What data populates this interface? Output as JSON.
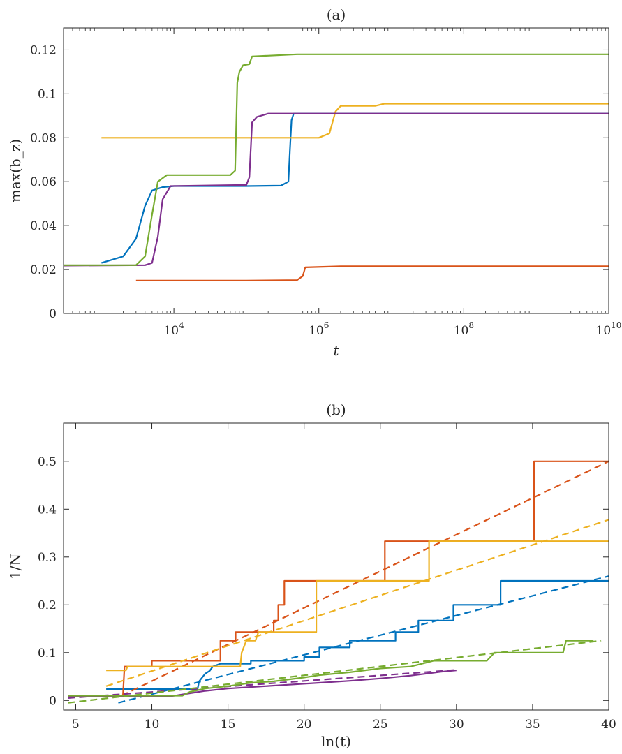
{
  "chart_data": [
    {
      "type": "line",
      "title": "(a)",
      "xlabel": "t",
      "ylabel": "max(b_z)",
      "xscale": "log",
      "xlim": [
        300,
        10000000000
      ],
      "ylim": [
        0,
        0.13
      ],
      "xticks": [
        10000,
        1000000,
        100000000,
        10000000000
      ],
      "xtick_labels": [
        {
          "base": "10",
          "exp": "4"
        },
        {
          "base": "10",
          "exp": "6"
        },
        {
          "base": "10",
          "exp": "8"
        },
        {
          "base": "10",
          "exp": "10"
        }
      ],
      "yticks": [
        0,
        0.02,
        0.04,
        0.06,
        0.08,
        0.1,
        0.12
      ],
      "ytick_labels": [
        "0",
        "0.02",
        "0.04",
        "0.06",
        "0.08",
        "0.1",
        "0.12"
      ],
      "grid": false,
      "series": [
        {
          "color": "#0072BD",
          "points": [
            [
              1000,
              0.023
            ],
            [
              2000,
              0.026
            ],
            [
              3000,
              0.034
            ],
            [
              4000,
              0.049
            ],
            [
              5000,
              0.056
            ],
            [
              7000,
              0.0575
            ],
            [
              10000,
              0.058
            ],
            [
              100000,
              0.058
            ],
            [
              300000,
              0.0582
            ],
            [
              380000,
              0.06
            ],
            [
              400000,
              0.075
            ],
            [
              420000,
              0.088
            ],
            [
              450000,
              0.091
            ],
            [
              10000000000,
              0.091
            ]
          ]
        },
        {
          "color": "#D95319",
          "points": [
            [
              3000,
              0.015
            ],
            [
              100000,
              0.015
            ],
            [
              500000,
              0.0152
            ],
            [
              600000,
              0.017
            ],
            [
              650000,
              0.021
            ],
            [
              2000000,
              0.0215
            ],
            [
              10000000000,
              0.0215
            ]
          ]
        },
        {
          "color": "#EDB120",
          "points": [
            [
              1000,
              0.08
            ],
            [
              1000000,
              0.08
            ],
            [
              1400000,
              0.082
            ],
            [
              1700000,
              0.092
            ],
            [
              2000000,
              0.0945
            ],
            [
              6000000,
              0.0945
            ],
            [
              8000000,
              0.0955
            ],
            [
              10000000000,
              0.0955
            ]
          ]
        },
        {
          "color": "#7E2F8E",
          "points": [
            [
              300,
              0.0218
            ],
            [
              4000,
              0.022
            ],
            [
              5000,
              0.023
            ],
            [
              6000,
              0.035
            ],
            [
              7000,
              0.052
            ],
            [
              9000,
              0.058
            ],
            [
              100000,
              0.0585
            ],
            [
              110000,
              0.062
            ],
            [
              120000,
              0.087
            ],
            [
              140000,
              0.0895
            ],
            [
              200000,
              0.091
            ],
            [
              10000000000,
              0.091
            ]
          ]
        },
        {
          "color": "#77AC30",
          "points": [
            [
              300,
              0.022
            ],
            [
              3000,
              0.022
            ],
            [
              4000,
              0.026
            ],
            [
              5000,
              0.045
            ],
            [
              6000,
              0.06
            ],
            [
              8000,
              0.063
            ],
            [
              60000,
              0.063
            ],
            [
              70000,
              0.065
            ],
            [
              75000,
              0.105
            ],
            [
              80000,
              0.11
            ],
            [
              90000,
              0.113
            ],
            [
              110000,
              0.1135
            ],
            [
              120000,
              0.117
            ],
            [
              500000,
              0.118
            ],
            [
              10000000000,
              0.118
            ]
          ]
        }
      ]
    },
    {
      "type": "line",
      "title": "(b)",
      "xlabel": "ln(t)",
      "ylabel": "1/N",
      "xlim": [
        4.2,
        40
      ],
      "ylim": [
        -0.02,
        0.58
      ],
      "xticks": [
        5,
        10,
        15,
        20,
        25,
        30,
        35,
        40
      ],
      "xtick_labels": [
        "5",
        "10",
        "15",
        "20",
        "25",
        "30",
        "35",
        "40"
      ],
      "yticks": [
        0,
        0.1,
        0.2,
        0.3,
        0.4,
        0.5
      ],
      "ytick_labels": [
        "0",
        "0.1",
        "0.2",
        "0.3",
        "0.4",
        "0.5"
      ],
      "grid": false,
      "series": [
        {
          "color": "#0072BD",
          "style": "steps",
          "points": [
            [
              7,
              0.024
            ],
            [
              13,
              0.024
            ],
            [
              13.1,
              0.04
            ],
            [
              13.5,
              0.056
            ],
            [
              13.8,
              0.062
            ],
            [
              14,
              0.071
            ],
            [
              14.5,
              0.077
            ],
            [
              16.5,
              0.077
            ],
            [
              16.5,
              0.083
            ],
            [
              20,
              0.083
            ],
            [
              20,
              0.091
            ],
            [
              21,
              0.091
            ],
            [
              21,
              0.111
            ],
            [
              23,
              0.111
            ],
            [
              23,
              0.125
            ],
            [
              26,
              0.125
            ],
            [
              26,
              0.143
            ],
            [
              27.5,
              0.143
            ],
            [
              27.5,
              0.167
            ],
            [
              29.8,
              0.167
            ],
            [
              29.8,
              0.2
            ],
            [
              32.9,
              0.2
            ],
            [
              32.9,
              0.25
            ],
            [
              40,
              0.25
            ]
          ]
        },
        {
          "color": "#0072BD",
          "style": "dashed",
          "points": [
            [
              7.8,
              -0.005
            ],
            [
              40,
              0.26
            ]
          ]
        },
        {
          "color": "#D95319",
          "style": "steps",
          "points": [
            [
              8.1,
              0.01
            ],
            [
              8.2,
              0.071
            ],
            [
              10,
              0.071
            ],
            [
              10,
              0.083
            ],
            [
              14.5,
              0.083
            ],
            [
              14.5,
              0.125
            ],
            [
              15.5,
              0.125
            ],
            [
              15.5,
              0.143
            ],
            [
              18,
              0.143
            ],
            [
              18,
              0.167
            ],
            [
              18.3,
              0.167
            ],
            [
              18.3,
              0.2
            ],
            [
              18.7,
              0.2
            ],
            [
              18.7,
              0.25
            ],
            [
              25.3,
              0.25
            ],
            [
              25.3,
              0.333
            ],
            [
              35.1,
              0.333
            ],
            [
              35.1,
              0.5
            ],
            [
              40,
              0.5
            ]
          ]
        },
        {
          "color": "#D95319",
          "style": "dashed",
          "points": [
            [
              8,
              0.01
            ],
            [
              40,
              0.5
            ]
          ]
        },
        {
          "color": "#EDB120",
          "style": "steps",
          "points": [
            [
              7,
              0.063
            ],
            [
              8.3,
              0.063
            ],
            [
              8.4,
              0.071
            ],
            [
              15.8,
              0.071
            ],
            [
              15.9,
              0.1
            ],
            [
              16.2,
              0.125
            ],
            [
              16.5,
              0.125
            ],
            [
              16.8,
              0.125
            ],
            [
              17,
              0.143
            ],
            [
              20.8,
              0.143
            ],
            [
              20.8,
              0.25
            ],
            [
              28.2,
              0.25
            ],
            [
              28.2,
              0.333
            ],
            [
              40,
              0.333
            ]
          ]
        },
        {
          "color": "#EDB120",
          "style": "dashed",
          "points": [
            [
              7,
              0.03
            ],
            [
              40,
              0.378
            ]
          ]
        },
        {
          "color": "#7E2F8E",
          "style": "steps",
          "points": [
            [
              4.5,
              0.008
            ],
            [
              11,
              0.008
            ],
            [
              11.5,
              0.01
            ],
            [
              12.5,
              0.015
            ],
            [
              13.5,
              0.02
            ],
            [
              15,
              0.025
            ],
            [
              17,
              0.029
            ],
            [
              19,
              0.033
            ],
            [
              21,
              0.037
            ],
            [
              23,
              0.041
            ],
            [
              25,
              0.046
            ],
            [
              27,
              0.052
            ],
            [
              29,
              0.06
            ],
            [
              30,
              0.063
            ]
          ]
        },
        {
          "color": "#7E2F8E",
          "style": "dashed",
          "points": [
            [
              4.5,
              0.005
            ],
            [
              30,
              0.064
            ]
          ]
        },
        {
          "color": "#77AC30",
          "style": "steps",
          "points": [
            [
              4.5,
              0.01
            ],
            [
              12,
              0.01
            ],
            [
              12.5,
              0.018
            ],
            [
              13.5,
              0.025
            ],
            [
              15,
              0.03
            ],
            [
              16.5,
              0.037
            ],
            [
              18,
              0.04
            ],
            [
              20,
              0.048
            ],
            [
              21,
              0.053
            ],
            [
              23,
              0.059
            ],
            [
              25,
              0.067
            ],
            [
              27,
              0.071
            ],
            [
              28.5,
              0.083
            ],
            [
              32,
              0.083
            ],
            [
              32.5,
              0.1
            ],
            [
              37,
              0.1
            ],
            [
              37.2,
              0.125
            ],
            [
              39,
              0.125
            ]
          ]
        },
        {
          "color": "#77AC30",
          "style": "dashed",
          "points": [
            [
              4.5,
              -0.005
            ],
            [
              39.5,
              0.125
            ]
          ]
        }
      ]
    }
  ]
}
